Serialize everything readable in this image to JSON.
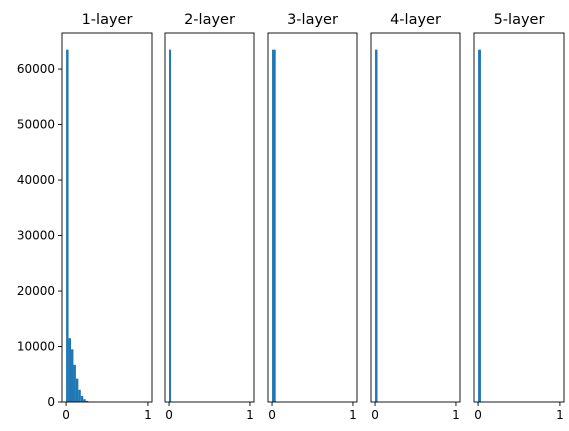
{
  "chart_data": {
    "type": "bar",
    "subplots": [
      {
        "title": "1-layer",
        "xlim": [
          -0.05,
          1.05
        ],
        "ylim": [
          0,
          66500
        ],
        "xticks": [
          {
            "value": 0,
            "label": "0"
          },
          {
            "value": 1,
            "label": "1"
          }
        ],
        "yticks": [
          {
            "value": 0,
            "label": "0"
          },
          {
            "value": 10000,
            "label": "10000"
          },
          {
            "value": 20000,
            "label": "20000"
          },
          {
            "value": 30000,
            "label": "30000"
          },
          {
            "value": 40000,
            "label": "40000"
          },
          {
            "value": 50000,
            "label": "50000"
          },
          {
            "value": 60000,
            "label": "60000"
          }
        ],
        "bins": [
          {
            "start": 0.0,
            "end": 0.03,
            "count": 63500
          },
          {
            "start": 0.03,
            "end": 0.06,
            "count": 11500
          },
          {
            "start": 0.06,
            "end": 0.09,
            "count": 9500
          },
          {
            "start": 0.09,
            "end": 0.12,
            "count": 6700
          },
          {
            "start": 0.12,
            "end": 0.15,
            "count": 4200
          },
          {
            "start": 0.15,
            "end": 0.18,
            "count": 2200
          },
          {
            "start": 0.18,
            "end": 0.21,
            "count": 1100
          },
          {
            "start": 0.21,
            "end": 0.24,
            "count": 500
          },
          {
            "start": 0.24,
            "end": 0.27,
            "count": 200
          },
          {
            "start": 0.27,
            "end": 0.3,
            "count": 60
          }
        ]
      },
      {
        "title": "2-layer",
        "xlim": [
          -0.05,
          1.05
        ],
        "ylim": [
          0,
          66500
        ],
        "xticks": [
          {
            "value": 0,
            "label": "0"
          },
          {
            "value": 1,
            "label": "1"
          }
        ],
        "yticks": [],
        "bins": [
          {
            "start": 0.0,
            "end": 0.025,
            "count": 63500
          }
        ]
      },
      {
        "title": "3-layer",
        "xlim": [
          -0.05,
          1.05
        ],
        "ylim": [
          0,
          66500
        ],
        "xticks": [
          {
            "value": 0,
            "label": "0"
          },
          {
            "value": 1,
            "label": "1"
          }
        ],
        "yticks": [],
        "bins": [
          {
            "start": 0.0,
            "end": 0.045,
            "count": 63500
          }
        ]
      },
      {
        "title": "4-layer",
        "xlim": [
          -0.05,
          1.05
        ],
        "ylim": [
          0,
          66500
        ],
        "xticks": [
          {
            "value": 0,
            "label": "0"
          },
          {
            "value": 1,
            "label": "1"
          }
        ],
        "yticks": [],
        "bins": [
          {
            "start": 0.0,
            "end": 0.03,
            "count": 63500
          }
        ]
      },
      {
        "title": "5-layer",
        "xlim": [
          -0.05,
          1.05
        ],
        "ylim": [
          0,
          66500
        ],
        "xticks": [
          {
            "value": 0,
            "label": "0"
          },
          {
            "value": 1,
            "label": "1"
          }
        ],
        "yticks": [],
        "bins": [
          {
            "start": 0.0,
            "end": 0.035,
            "count": 63500
          }
        ]
      }
    ],
    "grid": false,
    "bar_color": "#1f77b4"
  }
}
